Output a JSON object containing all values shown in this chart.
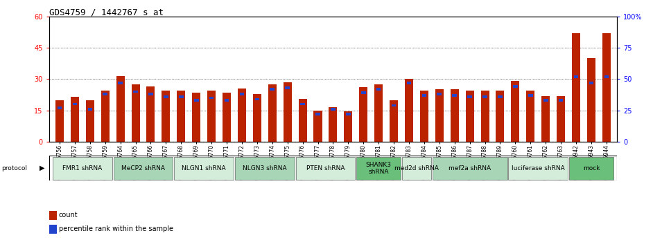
{
  "title": "GDS4759 / 1442767_s_at",
  "samples": [
    "GSM1145756",
    "GSM1145757",
    "GSM1145758",
    "GSM1145759",
    "GSM1145764",
    "GSM1145765",
    "GSM1145766",
    "GSM1145767",
    "GSM1145768",
    "GSM1145769",
    "GSM1145770",
    "GSM1145771",
    "GSM1145772",
    "GSM1145773",
    "GSM1145774",
    "GSM1145775",
    "GSM1145776",
    "GSM1145777",
    "GSM1145778",
    "GSM1145779",
    "GSM1145780",
    "GSM1145781",
    "GSM1145782",
    "GSM1145783",
    "GSM1145784",
    "GSM1145785",
    "GSM1145786",
    "GSM1145787",
    "GSM1145788",
    "GSM1145789",
    "GSM1145760",
    "GSM1145761",
    "GSM1145762",
    "GSM1145763",
    "GSM1145942",
    "GSM1145943",
    "GSM1145944"
  ],
  "counts": [
    20.0,
    21.5,
    20.0,
    24.5,
    31.5,
    27.5,
    26.5,
    24.5,
    24.5,
    23.5,
    24.5,
    23.5,
    25.5,
    23.0,
    27.5,
    28.5,
    20.5,
    15.0,
    16.5,
    14.5,
    26.0,
    27.5,
    20.0,
    30.0,
    24.5,
    25.0,
    25.0,
    24.5,
    24.5,
    24.5,
    29.0,
    24.5,
    22.0,
    22.0,
    52.0,
    40.0,
    52.0
  ],
  "percentile_ranks": [
    27.0,
    30.0,
    26.0,
    38.0,
    47.0,
    40.0,
    38.0,
    36.0,
    36.0,
    33.0,
    35.0,
    33.0,
    38.0,
    34.0,
    42.0,
    43.0,
    30.0,
    22.0,
    26.0,
    22.0,
    39.0,
    42.0,
    29.0,
    47.0,
    37.0,
    38.0,
    37.0,
    36.0,
    36.0,
    36.0,
    44.0,
    37.0,
    33.0,
    33.0,
    52.0,
    47.0,
    52.0
  ],
  "protocols": [
    {
      "label": "FMR1 shRNA",
      "start": 0,
      "end": 4,
      "color": "#d4edda"
    },
    {
      "label": "MeCP2 shRNA",
      "start": 4,
      "end": 8,
      "color": "#a8d5b5"
    },
    {
      "label": "NLGN1 shRNA",
      "start": 8,
      "end": 12,
      "color": "#d4edda"
    },
    {
      "label": "NLGN3 shRNA",
      "start": 12,
      "end": 16,
      "color": "#a8d5b5"
    },
    {
      "label": "PTEN shRNA",
      "start": 16,
      "end": 20,
      "color": "#d4edda"
    },
    {
      "label": "SHANK3\nshRNA",
      "start": 20,
      "end": 23,
      "color": "#6abf7b"
    },
    {
      "label": "med2d shRNA",
      "start": 23,
      "end": 25,
      "color": "#d4edda"
    },
    {
      "label": "mef2a shRNA",
      "start": 25,
      "end": 30,
      "color": "#a8d5b5"
    },
    {
      "label": "luciferase shRNA",
      "start": 30,
      "end": 34,
      "color": "#d4edda"
    },
    {
      "label": "mock",
      "start": 34,
      "end": 37,
      "color": "#6abf7b"
    }
  ],
  "ylim_left": [
    0,
    60
  ],
  "ylim_right": [
    0,
    100
  ],
  "yticks_left": [
    0,
    15,
    30,
    45,
    60
  ],
  "yticks_right": [
    0,
    25,
    50,
    75,
    100
  ],
  "bar_color": "#bb2200",
  "percentile_color": "#2244cc",
  "title_fontsize": 9,
  "tick_fontsize": 6,
  "sample_fontsize": 5.5,
  "proto_fontsize": 6.5,
  "legend_fontsize": 7
}
